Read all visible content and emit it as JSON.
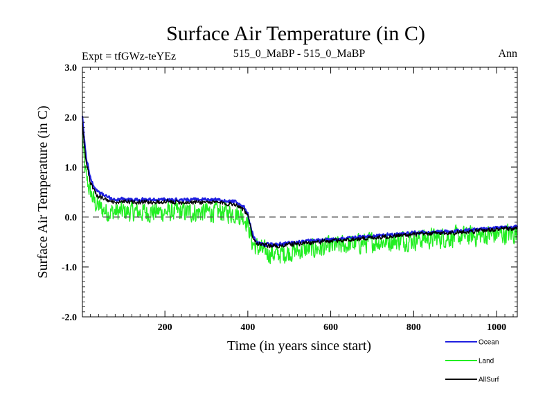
{
  "chart_data": {
    "type": "line",
    "title": "Surface Air Temperature (in C)",
    "subtitle_left": "Expt = tfGWz-teYEz",
    "subtitle_center": "515_0_MaBP - 515_0_MaBP",
    "subtitle_right": "Ann",
    "xlabel": "Time (in years since start)",
    "ylabel": "Surface Air Temperature (in C)",
    "xlim": [
      1,
      1050
    ],
    "ylim": [
      -2.0,
      3.0
    ],
    "xticks": [
      200,
      400,
      600,
      800,
      1000
    ],
    "xtick_labels": [
      "200",
      "400",
      "600",
      "800",
      "1000"
    ],
    "yticks": [
      -2.0,
      -1.0,
      0.0,
      1.0,
      2.0,
      3.0
    ],
    "ytick_labels": [
      "-2.0",
      "-1.0",
      "0.0",
      "1.0",
      "2.0",
      "3.0"
    ],
    "zero_line": true,
    "legend_position": "bottom-right",
    "series": [
      {
        "name": "Ocean",
        "color": "#1f1fe0",
        "noise": 0.03,
        "x": [
          1,
          5,
          10,
          20,
          30,
          40,
          50,
          60,
          80,
          100,
          130,
          160,
          200,
          250,
          300,
          340,
          370,
          390,
          400,
          410,
          420,
          440,
          470,
          500,
          550,
          600,
          650,
          700,
          750,
          800,
          850,
          900,
          950,
          1000,
          1050
        ],
        "values": [
          2.0,
          1.6,
          1.2,
          0.8,
          0.6,
          0.5,
          0.45,
          0.4,
          0.35,
          0.35,
          0.35,
          0.35,
          0.35,
          0.35,
          0.35,
          0.33,
          0.3,
          0.2,
          0.05,
          -0.3,
          -0.5,
          -0.55,
          -0.55,
          -0.52,
          -0.48,
          -0.45,
          -0.42,
          -0.38,
          -0.35,
          -0.32,
          -0.3,
          -0.28,
          -0.25,
          -0.22,
          -0.2
        ]
      },
      {
        "name": "Land",
        "color": "#22ee22",
        "noise": 0.18,
        "x": [
          1,
          5,
          10,
          20,
          30,
          40,
          50,
          60,
          80,
          100,
          130,
          160,
          200,
          250,
          300,
          340,
          370,
          390,
          400,
          410,
          420,
          440,
          470,
          500,
          550,
          600,
          650,
          700,
          750,
          800,
          850,
          900,
          950,
          1000,
          1050
        ],
        "values": [
          1.6,
          1.1,
          0.8,
          0.5,
          0.3,
          0.2,
          0.15,
          0.1,
          0.1,
          0.1,
          0.1,
          0.1,
          0.1,
          0.1,
          0.1,
          0.1,
          0.08,
          0.0,
          -0.1,
          -0.5,
          -0.6,
          -0.7,
          -0.75,
          -0.7,
          -0.65,
          -0.6,
          -0.55,
          -0.5,
          -0.48,
          -0.45,
          -0.42,
          -0.4,
          -0.38,
          -0.35,
          -0.33
        ]
      },
      {
        "name": "AllSurf",
        "color": "#000000",
        "noise": 0.04,
        "x": [
          1,
          5,
          10,
          20,
          30,
          40,
          50,
          60,
          80,
          100,
          130,
          160,
          200,
          250,
          300,
          340,
          370,
          390,
          400,
          410,
          420,
          440,
          470,
          500,
          550,
          600,
          650,
          700,
          750,
          800,
          850,
          900,
          950,
          1000,
          1050
        ],
        "values": [
          1.9,
          1.5,
          1.1,
          0.7,
          0.5,
          0.42,
          0.38,
          0.33,
          0.3,
          0.3,
          0.3,
          0.3,
          0.3,
          0.3,
          0.3,
          0.28,
          0.26,
          0.16,
          0.02,
          -0.33,
          -0.52,
          -0.57,
          -0.58,
          -0.55,
          -0.51,
          -0.48,
          -0.45,
          -0.41,
          -0.38,
          -0.35,
          -0.33,
          -0.31,
          -0.28,
          -0.25,
          -0.23
        ]
      }
    ]
  }
}
